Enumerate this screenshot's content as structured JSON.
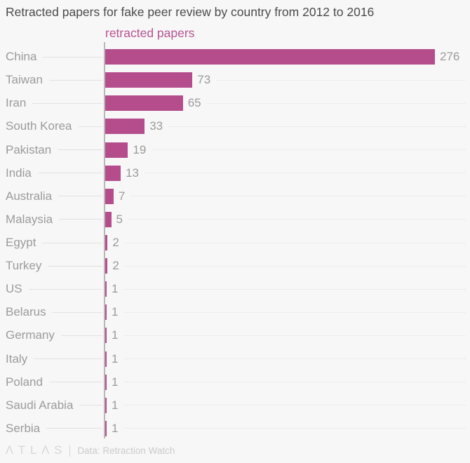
{
  "title": "Retracted papers for fake peer review by country from 2012 to 2016",
  "legend": {
    "label": "retracted papers",
    "color": "#b5548f"
  },
  "footer": {
    "logo": "ΛTLΛS",
    "credit": "Data: Retraction Watch"
  },
  "colors": {
    "background": "#f8f7f8",
    "bar": "#b54d8c",
    "axis_line": "#b8b8b8",
    "labels": "#9b9b9b",
    "leader_lines": "#e2e2e2",
    "title_text": "#4b4b4b"
  },
  "chart_data": {
    "type": "bar",
    "orientation": "horizontal",
    "title": "Retracted papers for fake peer review by country from 2012 to 2016",
    "series_label": "retracted papers",
    "xlabel": "",
    "ylabel": "",
    "xlim": [
      0,
      276
    ],
    "grid": "off",
    "value_labels": "on",
    "bar_color": "#b54d8c",
    "categories": [
      "China",
      "Taiwan",
      "Iran",
      "South Korea",
      "Pakistan",
      "India",
      "Australia",
      "Malaysia",
      "Egypt",
      "Turkey",
      "US",
      "Belarus",
      "Germany",
      "Italy",
      "Poland",
      "Saudi Arabia",
      "Serbia"
    ],
    "values": [
      276,
      73,
      65,
      33,
      19,
      13,
      7,
      5,
      2,
      2,
      1,
      1,
      1,
      1,
      1,
      1,
      1
    ]
  }
}
